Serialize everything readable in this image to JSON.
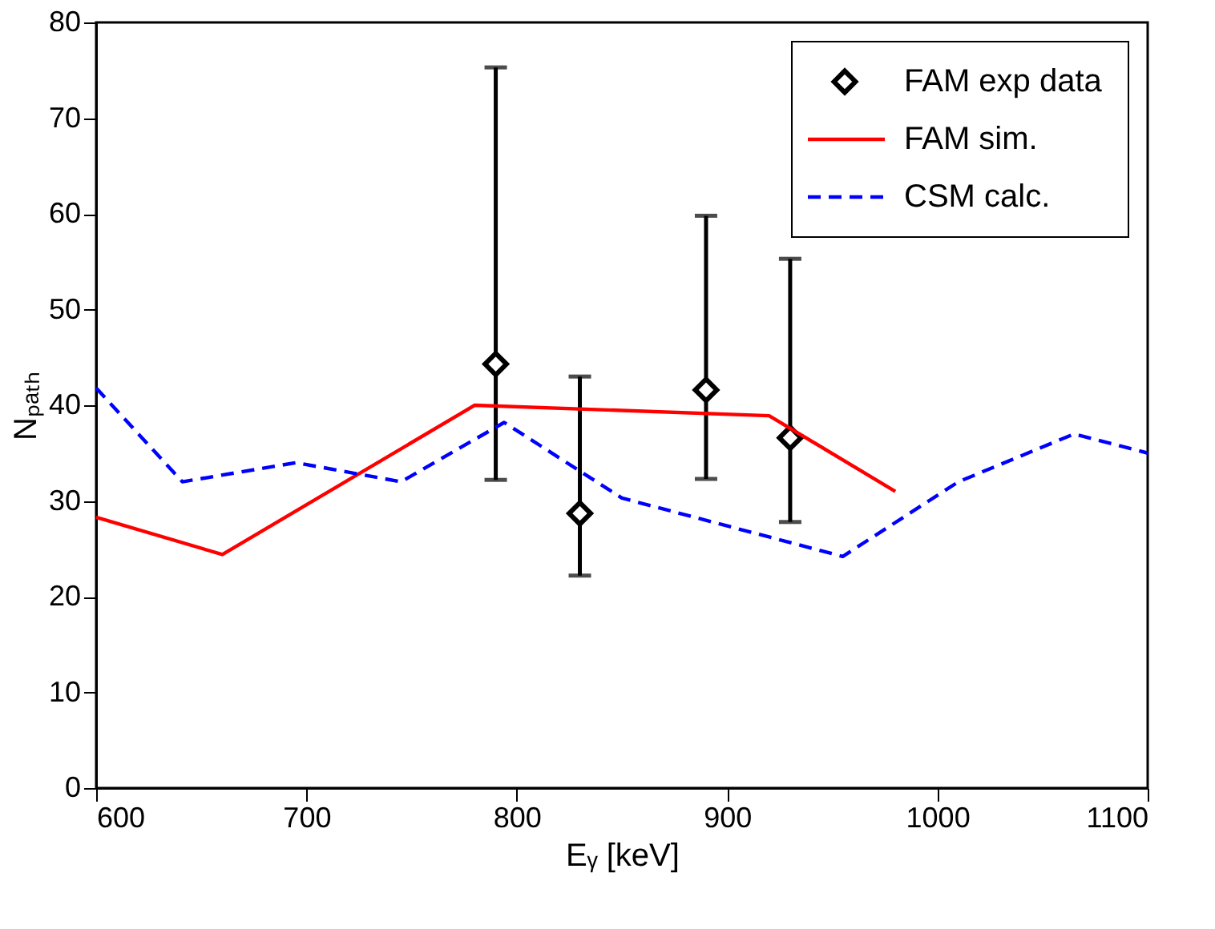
{
  "chart_data": {
    "type": "line",
    "xlabel": "Eᵧ [keV]",
    "ylabel": "Nₚₐₜₕ",
    "xlim": [
      600,
      1100
    ],
    "xticks": [
      600,
      700,
      800,
      900,
      1000,
      1100
    ],
    "ylim": [
      0,
      80
    ],
    "yticks": [
      0,
      10,
      20,
      30,
      40,
      50,
      60,
      70,
      80
    ],
    "grid": false,
    "legend": "top right",
    "series": [
      {
        "name": "FAM exp data",
        "type": "scatter",
        "color": "#000000",
        "marker": "diamond",
        "x": [
          790,
          830,
          890,
          930
        ],
        "values": [
          44.3,
          28.7,
          41.6,
          36.6
        ],
        "errors": [
          [
            32.2,
            75.3
          ],
          [
            22.2,
            43.0
          ],
          [
            32.3,
            59.8
          ],
          [
            27.8,
            55.3
          ]
        ]
      },
      {
        "name": "FAM sim.",
        "color": "#ff0000",
        "line_style": "solid",
        "marker": "none",
        "x": [
          600,
          660,
          780,
          920,
          980
        ],
        "values": [
          28.3,
          24.4,
          40.0,
          38.9,
          31.0
        ]
      },
      {
        "name": "CSM calc.",
        "color": "#0000ff",
        "line_style": "dashed",
        "marker": "none",
        "x": [
          600,
          641,
          695,
          745,
          794,
          850,
          955,
          1010,
          1065,
          1100
        ],
        "values": [
          41.8,
          32.0,
          34.0,
          32.0,
          38.2,
          30.3,
          24.2,
          32.0,
          37.0,
          35.0
        ]
      }
    ]
  }
}
